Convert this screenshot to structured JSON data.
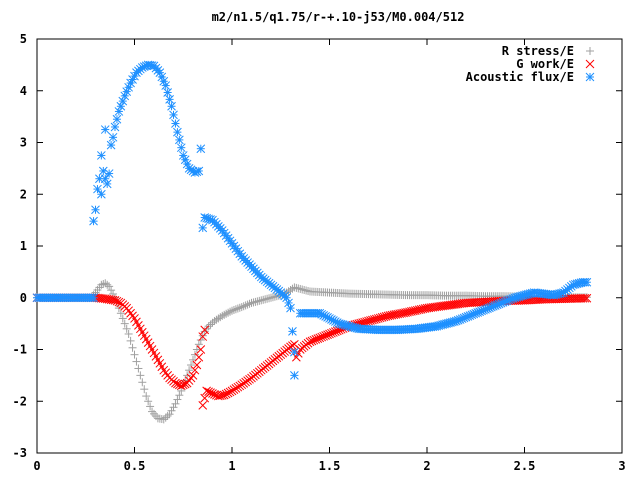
{
  "chart_data": {
    "type": "scatter",
    "title": "m2/n1.5/q1.75/r-+.10-j53/M0.004/512",
    "xlim": [
      0,
      3
    ],
    "ylim": [
      -3,
      5
    ],
    "xticks": [
      "0",
      "0.5",
      "1",
      "1.5",
      "2",
      "2.5",
      "3"
    ],
    "yticks": [
      "-3",
      "-2",
      "-1",
      "0",
      "1",
      "2",
      "3",
      "4",
      "5"
    ],
    "grid": false,
    "legend_position": "top-right",
    "series": [
      {
        "name": "R stress/E",
        "marker": "plus",
        "color": "#a0a0a0",
        "points": [
          [
            0.0,
            0.0
          ],
          [
            0.1,
            0.0
          ],
          [
            0.2,
            0.0
          ],
          [
            0.28,
            0.0
          ],
          [
            0.3,
            0.1
          ],
          [
            0.33,
            0.25
          ],
          [
            0.35,
            0.28
          ],
          [
            0.37,
            0.22
          ],
          [
            0.4,
            0.0
          ],
          [
            0.43,
            -0.3
          ],
          [
            0.47,
            -0.7
          ],
          [
            0.5,
            -1.1
          ],
          [
            0.53,
            -1.5
          ],
          [
            0.56,
            -1.9
          ],
          [
            0.59,
            -2.2
          ],
          [
            0.62,
            -2.33
          ],
          [
            0.65,
            -2.35
          ],
          [
            0.68,
            -2.25
          ],
          [
            0.71,
            -2.05
          ],
          [
            0.74,
            -1.8
          ],
          [
            0.77,
            -1.5
          ],
          [
            0.8,
            -1.2
          ],
          [
            0.83,
            -0.9
          ],
          [
            0.86,
            -0.65
          ],
          [
            0.88,
            -0.55
          ],
          [
            0.91,
            -0.45
          ],
          [
            0.95,
            -0.35
          ],
          [
            1.0,
            -0.25
          ],
          [
            1.05,
            -0.18
          ],
          [
            1.1,
            -0.1
          ],
          [
            1.15,
            -0.05
          ],
          [
            1.2,
            0.0
          ],
          [
            1.25,
            0.05
          ],
          [
            1.28,
            0.1
          ],
          [
            1.3,
            0.15
          ],
          [
            1.32,
            0.2
          ],
          [
            1.34,
            0.18
          ],
          [
            1.4,
            0.12
          ],
          [
            1.5,
            0.1
          ],
          [
            1.6,
            0.08
          ],
          [
            1.7,
            0.07
          ],
          [
            1.8,
            0.06
          ],
          [
            1.9,
            0.05
          ],
          [
            2.0,
            0.05
          ],
          [
            2.1,
            0.04
          ],
          [
            2.2,
            0.04
          ],
          [
            2.3,
            0.03
          ],
          [
            2.4,
            0.03
          ],
          [
            2.5,
            0.02
          ],
          [
            2.6,
            0.02
          ],
          [
            2.7,
            0.01
          ],
          [
            2.82,
            0.01
          ]
        ]
      },
      {
        "name": "G work/E",
        "marker": "cross",
        "color": "#ff0000",
        "points": [
          [
            0.0,
            0.0
          ],
          [
            0.1,
            0.0
          ],
          [
            0.2,
            0.0
          ],
          [
            0.3,
            0.0
          ],
          [
            0.35,
            -0.02
          ],
          [
            0.4,
            -0.05
          ],
          [
            0.43,
            -0.1
          ],
          [
            0.46,
            -0.2
          ],
          [
            0.5,
            -0.4
          ],
          [
            0.53,
            -0.6
          ],
          [
            0.56,
            -0.8
          ],
          [
            0.59,
            -1.0
          ],
          [
            0.62,
            -1.2
          ],
          [
            0.65,
            -1.4
          ],
          [
            0.68,
            -1.55
          ],
          [
            0.71,
            -1.65
          ],
          [
            0.74,
            -1.7
          ],
          [
            0.77,
            -1.65
          ],
          [
            0.8,
            -1.5
          ],
          [
            0.82,
            -1.3
          ],
          [
            0.84,
            -1.0
          ],
          [
            0.85,
            -0.75
          ],
          [
            0.86,
            -0.62
          ],
          [
            0.85,
            -2.08
          ],
          [
            0.87,
            -1.8
          ],
          [
            0.9,
            -1.85
          ],
          [
            0.93,
            -1.9
          ],
          [
            0.96,
            -1.88
          ],
          [
            1.0,
            -1.8
          ],
          [
            1.05,
            -1.68
          ],
          [
            1.1,
            -1.55
          ],
          [
            1.15,
            -1.4
          ],
          [
            1.2,
            -1.25
          ],
          [
            1.25,
            -1.1
          ],
          [
            1.3,
            -0.95
          ],
          [
            1.32,
            -0.9
          ],
          [
            1.33,
            -1.15
          ],
          [
            1.35,
            -1.0
          ],
          [
            1.4,
            -0.85
          ],
          [
            1.5,
            -0.7
          ],
          [
            1.6,
            -0.55
          ],
          [
            1.7,
            -0.45
          ],
          [
            1.8,
            -0.35
          ],
          [
            1.9,
            -0.28
          ],
          [
            2.0,
            -0.2
          ],
          [
            2.1,
            -0.15
          ],
          [
            2.2,
            -0.1
          ],
          [
            2.3,
            -0.08
          ],
          [
            2.4,
            -0.06
          ],
          [
            2.5,
            -0.05
          ],
          [
            2.6,
            -0.03
          ],
          [
            2.7,
            -0.02
          ],
          [
            2.82,
            -0.01
          ]
        ]
      },
      {
        "name": "Acoustic flux/E",
        "marker": "star",
        "color": "#1e90ff",
        "points": [
          [
            0.0,
            0.0
          ],
          [
            0.1,
            0.0
          ],
          [
            0.2,
            0.0
          ],
          [
            0.29,
            0.0
          ],
          [
            0.29,
            1.48
          ],
          [
            0.3,
            1.7
          ],
          [
            0.31,
            2.1
          ],
          [
            0.32,
            2.3
          ],
          [
            0.33,
            2.0
          ],
          [
            0.33,
            2.75
          ],
          [
            0.34,
            2.45
          ],
          [
            0.35,
            2.3
          ],
          [
            0.36,
            2.2
          ],
          [
            0.35,
            3.25
          ],
          [
            0.37,
            2.4
          ],
          [
            0.38,
            2.95
          ],
          [
            0.39,
            3.1
          ],
          [
            0.4,
            3.3
          ],
          [
            0.42,
            3.6
          ],
          [
            0.45,
            3.9
          ],
          [
            0.48,
            4.15
          ],
          [
            0.51,
            4.35
          ],
          [
            0.54,
            4.45
          ],
          [
            0.57,
            4.5
          ],
          [
            0.6,
            4.48
          ],
          [
            0.63,
            4.35
          ],
          [
            0.66,
            4.1
          ],
          [
            0.69,
            3.7
          ],
          [
            0.72,
            3.2
          ],
          [
            0.75,
            2.75
          ],
          [
            0.78,
            2.5
          ],
          [
            0.81,
            2.42
          ],
          [
            0.83,
            2.45
          ],
          [
            0.84,
            2.88
          ],
          [
            0.85,
            1.35
          ],
          [
            0.86,
            1.55
          ],
          [
            0.9,
            1.5
          ],
          [
            0.95,
            1.3
          ],
          [
            1.0,
            1.05
          ],
          [
            1.05,
            0.8
          ],
          [
            1.1,
            0.6
          ],
          [
            1.15,
            0.4
          ],
          [
            1.2,
            0.25
          ],
          [
            1.25,
            0.1
          ],
          [
            1.28,
            0.0
          ],
          [
            1.3,
            -0.2
          ],
          [
            1.31,
            -0.65
          ],
          [
            1.32,
            -1.05
          ],
          [
            1.32,
            -1.5
          ],
          [
            1.35,
            -0.3
          ],
          [
            1.45,
            -0.3
          ],
          [
            1.55,
            -0.5
          ],
          [
            1.65,
            -0.6
          ],
          [
            1.75,
            -0.62
          ],
          [
            1.85,
            -0.62
          ],
          [
            1.95,
            -0.6
          ],
          [
            2.05,
            -0.55
          ],
          [
            2.15,
            -0.45
          ],
          [
            2.25,
            -0.3
          ],
          [
            2.35,
            -0.15
          ],
          [
            2.45,
            0.0
          ],
          [
            2.55,
            0.1
          ],
          [
            2.65,
            0.05
          ],
          [
            2.7,
            0.1
          ],
          [
            2.75,
            0.25
          ],
          [
            2.8,
            0.3
          ],
          [
            2.82,
            0.3
          ]
        ]
      }
    ]
  }
}
